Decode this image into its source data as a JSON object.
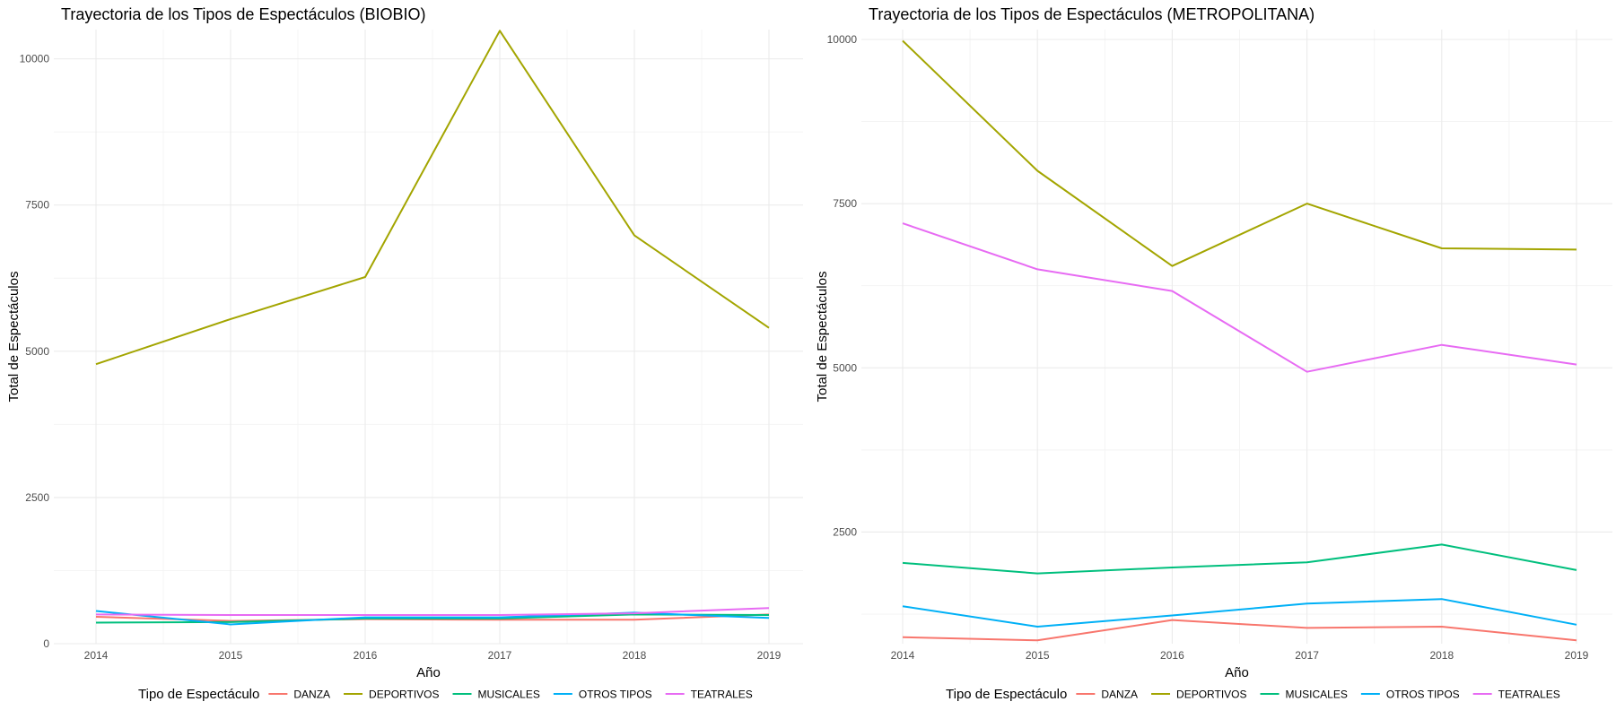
{
  "chart_data": [
    {
      "type": "line",
      "title": "Trayectoria de los Tipos de Espectáculos (BIOBIO)",
      "xlabel": "Año",
      "ylabel": "Total de Espectáculos",
      "x": [
        2014,
        2015,
        2016,
        2017,
        2018,
        2019
      ],
      "x_tick_labels": [
        "2014",
        "2015",
        "2016",
        "2017",
        "2018",
        "2019"
      ],
      "ylim": [
        0,
        10500
      ],
      "y_ticks": [
        0,
        2500,
        5000,
        7500,
        10000
      ],
      "y_tick_labels": [
        "0",
        "2500",
        "5000",
        "7500",
        "10000"
      ],
      "grid": true,
      "series": [
        {
          "name": "DANZA",
          "color": "#F8766D",
          "values": [
            460,
            390,
            420,
            410,
            410,
            500
          ]
        },
        {
          "name": "DEPORTIVOS",
          "color": "#A3A500",
          "values": [
            4780,
            5550,
            6270,
            10480,
            6980,
            5400
          ]
        },
        {
          "name": "MUSICALES",
          "color": "#00BF7D",
          "values": [
            360,
            370,
            430,
            430,
            500,
            490
          ]
        },
        {
          "name": "OTROS TIPOS",
          "color": "#00B0F6",
          "values": [
            560,
            330,
            450,
            450,
            530,
            440
          ]
        },
        {
          "name": "TEATRALES",
          "color": "#E76BF3",
          "values": [
            500,
            490,
            490,
            490,
            520,
            610
          ]
        }
      ]
    },
    {
      "type": "line",
      "title": "Trayectoria de los Tipos de Espectáculos (METROPOLITANA)",
      "xlabel": "Año",
      "ylabel": "Total de Espectáculos",
      "x": [
        2014,
        2015,
        2016,
        2017,
        2018,
        2019
      ],
      "x_tick_labels": [
        "2014",
        "2015",
        "2016",
        "2017",
        "2018",
        "2019"
      ],
      "ylim": [
        800,
        10150
      ],
      "y_ticks": [
        2500,
        5000,
        7500,
        10000
      ],
      "y_tick_labels": [
        "2500",
        "5000",
        "7500",
        "10000"
      ],
      "grid": true,
      "series": [
        {
          "name": "DANZA",
          "color": "#F8766D",
          "values": [
            900,
            850,
            1160,
            1040,
            1060,
            850
          ]
        },
        {
          "name": "DEPORTIVOS",
          "color": "#A3A500",
          "values": [
            9980,
            8000,
            6550,
            7500,
            6820,
            6800
          ]
        },
        {
          "name": "MUSICALES",
          "color": "#00BF7D",
          "values": [
            2030,
            1870,
            1960,
            2040,
            2310,
            1920
          ]
        },
        {
          "name": "OTROS TIPOS",
          "color": "#00B0F6",
          "values": [
            1370,
            1060,
            1230,
            1410,
            1480,
            1090
          ]
        },
        {
          "name": "TEATRALES",
          "color": "#E76BF3",
          "values": [
            7200,
            6500,
            6170,
            4940,
            5350,
            5050
          ]
        }
      ]
    }
  ],
  "legend": {
    "title": "Tipo de Espectáculo",
    "placement": "bottom"
  }
}
